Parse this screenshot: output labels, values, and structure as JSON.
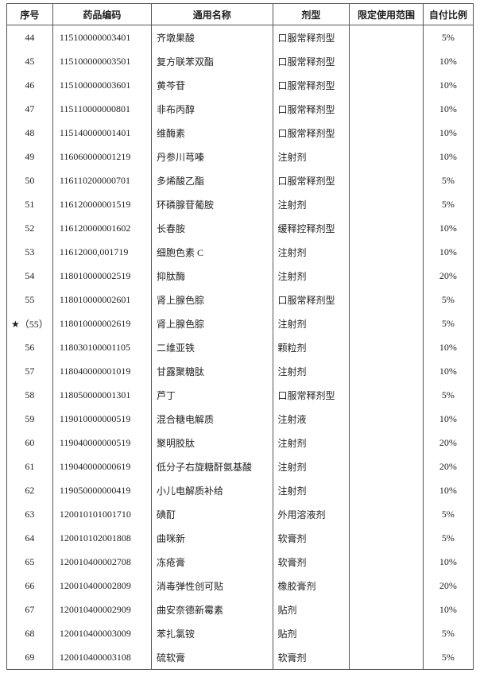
{
  "columns": [
    "序号",
    "药品编码",
    "通用名称",
    "剂型",
    "限定使用范围",
    "自付比例"
  ],
  "rows": [
    {
      "seq": "44",
      "code": "115100000003401",
      "name": "齐墩果酸",
      "form": "口服常释剂型",
      "scope": "",
      "ratio": "5%"
    },
    {
      "seq": "45",
      "code": "115100000003501",
      "name": "复方联苯双酯",
      "form": "口服常释剂型",
      "scope": "",
      "ratio": "10%"
    },
    {
      "seq": "46",
      "code": "115100000003601",
      "name": "黄芩苷",
      "form": "口服常释剂型",
      "scope": "",
      "ratio": "10%"
    },
    {
      "seq": "47",
      "code": "115110000000801",
      "name": "非布丙醇",
      "form": "口服常释剂型",
      "scope": "",
      "ratio": "10%"
    },
    {
      "seq": "48",
      "code": "115140000001401",
      "name": "维酶素",
      "form": "口服常释剂型",
      "scope": "",
      "ratio": "10%"
    },
    {
      "seq": "49",
      "code": "116060000001219",
      "name": "丹参川芎嗪",
      "form": "注射剂",
      "scope": "",
      "ratio": "10%"
    },
    {
      "seq": "50",
      "code": "116110200000701",
      "name": "多烯酸乙酯",
      "form": "口服常释剂型",
      "scope": "",
      "ratio": "5%"
    },
    {
      "seq": "51",
      "code": "116120000001519",
      "name": "环磷腺苷葡胺",
      "form": "注射剂",
      "scope": "",
      "ratio": "5%"
    },
    {
      "seq": "52",
      "code": "116120000001602",
      "name": "长春胺",
      "form": "缓释控释剂型",
      "scope": "",
      "ratio": "10%"
    },
    {
      "seq": "53",
      "code": "11612000,001719",
      "name": "细胞色素 C",
      "form": "注射剂",
      "scope": "",
      "ratio": "10%"
    },
    {
      "seq": "54",
      "code": "118010000002519",
      "name": "抑肽酶",
      "form": "注射剂",
      "scope": "",
      "ratio": "20%"
    },
    {
      "seq": "55",
      "code": "118010000002601",
      "name": "肾上腺色腙",
      "form": "口服常释剂型",
      "scope": "",
      "ratio": "5%"
    },
    {
      "seq": "★（55）",
      "code": "118010000002619",
      "name": "肾上腺色腙",
      "form": "注射剂",
      "scope": "",
      "ratio": "5%"
    },
    {
      "seq": "56",
      "code": "118030100001105",
      "name": "二维亚铁",
      "form": "颗粒剂",
      "scope": "",
      "ratio": "10%"
    },
    {
      "seq": "57",
      "code": "118040000001019",
      "name": "甘露聚糖肽",
      "form": "注射剂",
      "scope": "",
      "ratio": "10%"
    },
    {
      "seq": "58",
      "code": "118050000001301",
      "name": "芦丁",
      "form": "口服常释剂型",
      "scope": "",
      "ratio": "5%"
    },
    {
      "seq": "59",
      "code": "119010000000519",
      "name": "混合糖电解质",
      "form": "注射液",
      "scope": "",
      "ratio": "10%"
    },
    {
      "seq": "60",
      "code": "119040000000519",
      "name": "聚明胶肽",
      "form": "注射剂",
      "scope": "",
      "ratio": "20%"
    },
    {
      "seq": "61",
      "code": "119040000000619",
      "name": "低分子右旋糖酐氨基酸",
      "form": "注射剂",
      "scope": "",
      "ratio": "20%"
    },
    {
      "seq": "62",
      "code": "119050000000419",
      "name": "小儿电解质补给",
      "form": "注射剂",
      "scope": "",
      "ratio": "10%"
    },
    {
      "seq": "63",
      "code": "120010101001710",
      "name": "碘酊",
      "form": "外用溶液剂",
      "scope": "",
      "ratio": "5%"
    },
    {
      "seq": "64",
      "code": "120010102001808",
      "name": "曲咪新",
      "form": "软膏剂",
      "scope": "",
      "ratio": "5%"
    },
    {
      "seq": "65",
      "code": "120010400002708",
      "name": "冻疮膏",
      "form": "软膏剂",
      "scope": "",
      "ratio": "10%"
    },
    {
      "seq": "66",
      "code": "120010400002809",
      "name": "消毒弹性创可贴",
      "form": "橡胶膏剂",
      "scope": "",
      "ratio": "20%"
    },
    {
      "seq": "67",
      "code": "120010400002909",
      "name": "曲安奈德新霉素",
      "form": "贴剂",
      "scope": "",
      "ratio": "10%"
    },
    {
      "seq": "68",
      "code": "120010400003009",
      "name": "苯扎氯铵",
      "form": "贴剂",
      "scope": "",
      "ratio": "5%"
    },
    {
      "seq": "69",
      "code": "120010400003108",
      "name": "硫软膏",
      "form": "软膏剂",
      "scope": "",
      "ratio": "5%"
    }
  ]
}
